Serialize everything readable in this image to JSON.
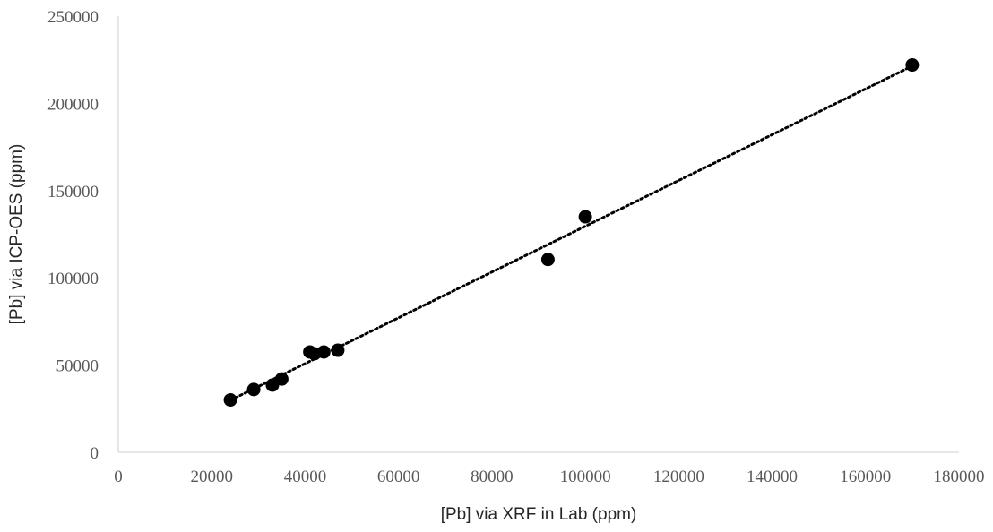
{
  "chart_data": {
    "type": "scatter",
    "title": "",
    "xlabel": "[Pb] via XRF in Lab (ppm)",
    "ylabel": "[Pb] via ICP-OES (ppm)",
    "xlim": [
      0,
      180000
    ],
    "ylim": [
      0,
      250000
    ],
    "x_ticks": [
      "0",
      "20000",
      "40000",
      "60000",
      "80000",
      "100000",
      "120000",
      "140000",
      "160000",
      "180000"
    ],
    "y_ticks": [
      "0",
      "50000",
      "100000",
      "150000",
      "200000",
      "250000"
    ],
    "grid": false,
    "legend": "none",
    "series": [
      {
        "points": [
          {
            "x": 24000,
            "y": 30000
          },
          {
            "x": 29000,
            "y": 36000
          },
          {
            "x": 33000,
            "y": 38500
          },
          {
            "x": 35000,
            "y": 42000
          },
          {
            "x": 41000,
            "y": 57500
          },
          {
            "x": 42000,
            "y": 56500
          },
          {
            "x": 44000,
            "y": 57500
          },
          {
            "x": 47000,
            "y": 58500
          },
          {
            "x": 92000,
            "y": 110500
          },
          {
            "x": 100000,
            "y": 135000
          },
          {
            "x": 170000,
            "y": 222000
          }
        ],
        "color": "#000000"
      }
    ],
    "trendline": {
      "type": "linear",
      "style": "dotted",
      "color": "#000000",
      "x_range": [
        24000,
        170000
      ]
    }
  }
}
